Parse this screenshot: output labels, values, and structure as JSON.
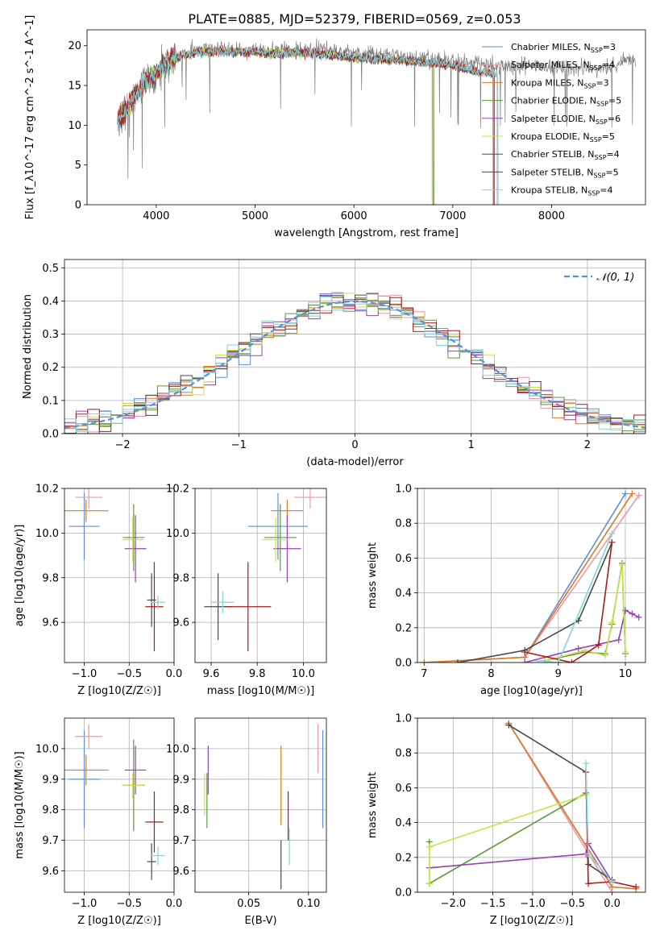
{
  "figure": {
    "title": "PLATE=0885, MJD=52379, FIBERID=0569, z=0.053"
  },
  "series_styles": [
    {
      "name": "Chabrier MILES",
      "nssp": "3",
      "color": "#5b8fd9"
    },
    {
      "name": "Salpeter MILES",
      "nssp": "4",
      "color": "#e89aa9"
    },
    {
      "name": "Kroupa MILES",
      "nssp": "3",
      "color": "#e07b22"
    },
    {
      "name": "Chabrier ELODIE",
      "nssp": "5",
      "color": "#5a9a3a"
    },
    {
      "name": "Salpeter ELODIE",
      "nssp": "6",
      "color": "#9b3fb5"
    },
    {
      "name": "Kroupa ELODIE",
      "nssp": "5",
      "color": "#c8e04a"
    },
    {
      "name": "Chabrier STELIB",
      "nssp": "4",
      "color": "#4a4a4a"
    },
    {
      "name": "Salpeter STELIB",
      "nssp": "5",
      "color": "#b01818"
    },
    {
      "name": "Kroupa STELIB",
      "nssp": "4",
      "color": "#7fd6dd"
    }
  ],
  "chart_data": [
    {
      "id": "spectrum",
      "type": "line",
      "xlabel": "wavelength [Angstrom, rest frame]",
      "ylabel": "Flux [f_λ10^-17 erg cm^-2 s^-1 A^-1]",
      "xlim": [
        3300,
        8950
      ],
      "ylim": [
        0,
        22
      ],
      "xticks": [
        4000,
        5000,
        6000,
        7000,
        8000
      ],
      "yticks": [
        0,
        5,
        10,
        15,
        20
      ],
      "legend_position": "right",
      "grid": false,
      "data_color": "#808080",
      "data_spectrum": {
        "x": [
          3610,
          3650,
          3700,
          3750,
          3800,
          3850,
          3900,
          3950,
          4000,
          4100,
          4200,
          4300,
          4400,
          4500,
          4600,
          4800,
          5000,
          5200,
          5400,
          5600,
          5800,
          6000,
          6200,
          6400,
          6600,
          6800,
          7000,
          7200,
          7400,
          7600,
          7800,
          8000,
          8200,
          8400,
          8600,
          8850
        ],
        "y": [
          10.0,
          11.0,
          12.5,
          13.0,
          14.5,
          15.0,
          16.0,
          15.5,
          16.5,
          18.0,
          18.5,
          19.0,
          19.5,
          19.8,
          19.6,
          19.5,
          19.4,
          19.3,
          19.5,
          19.6,
          19.3,
          19.0,
          18.8,
          18.7,
          18.5,
          18.2,
          18.0,
          17.8,
          17.5,
          17.4,
          17.5,
          17.3,
          17.2,
          17.0,
          17.4,
          18.5
        ]
      },
      "model_spectrum": {
        "x": [
          3610,
          3700,
          3800,
          3900,
          4000,
          4100,
          4200,
          4400,
          4600,
          4800,
          5000,
          5200,
          5400,
          5600,
          5800,
          6000,
          6200,
          6400,
          6600,
          6800,
          7000,
          7200,
          7400
        ],
        "y": [
          10.5,
          12.0,
          14.0,
          15.5,
          16.5,
          18.0,
          18.5,
          19.2,
          19.3,
          19.2,
          19.2,
          19.0,
          19.1,
          19.0,
          18.8,
          18.5,
          18.3,
          18.2,
          18.0,
          17.8,
          17.5,
          16.8,
          16.5
        ]
      }
    },
    {
      "id": "residuals",
      "type": "line",
      "xlabel": "(data-model)/error",
      "ylabel": "Normed distribution",
      "xlim": [
        -2.5,
        2.5
      ],
      "ylim": [
        0,
        0.525
      ],
      "xticks": [
        -2,
        -1,
        0,
        1,
        2
      ],
      "yticks": [
        0.0,
        0.1,
        0.2,
        0.3,
        0.4,
        0.5
      ],
      "legend": [
        "𝒩(0, 1)"
      ],
      "legend_position": "upper right",
      "grid": true
    },
    {
      "id": "age_vs_Z",
      "type": "scatter",
      "xlabel": "Z [log10(Z/Z☉)]",
      "ylabel": "age  [log10(age/yr)]",
      "xlim": [
        -1.22,
        0.0
      ],
      "ylim": [
        9.42,
        10.2
      ],
      "xticks": [
        -1.0,
        -0.5,
        0.0
      ],
      "yticks": [
        9.6,
        9.8,
        10.0,
        10.2
      ],
      "grid": true,
      "points": [
        {
          "x": -1.0,
          "y": 10.03,
          "xerr": 0.17,
          "yerr": 0.15
        },
        {
          "x": -0.95,
          "y": 10.16,
          "xerr": 0.15,
          "yerr": 0.05
        },
        {
          "x": -0.98,
          "y": 10.1,
          "xerr": 0.25,
          "yerr": 0.05
        },
        {
          "x": -0.45,
          "y": 9.98,
          "xerr": 0.12,
          "yerr": 0.15
        },
        {
          "x": -0.43,
          "y": 9.93,
          "xerr": 0.12,
          "yerr": 0.15
        },
        {
          "x": -0.46,
          "y": 9.97,
          "xerr": 0.12,
          "yerr": 0.1
        },
        {
          "x": -0.25,
          "y": 9.7,
          "xerr": 0.05,
          "yerr": 0.12
        },
        {
          "x": -0.22,
          "y": 9.67,
          "xerr": 0.1,
          "yerr": 0.2
        },
        {
          "x": -0.18,
          "y": 9.69,
          "xerr": 0.08,
          "yerr": 0.03
        }
      ]
    },
    {
      "id": "age_vs_mass",
      "type": "scatter",
      "xlabel": "mass [log10(M/M☉)]",
      "ylabel": "",
      "xlim": [
        9.53,
        10.1
      ],
      "ylim": [
        9.42,
        10.2
      ],
      "xticks": [
        9.6,
        9.8,
        10.0
      ],
      "yticks": [
        9.6,
        9.8,
        10.0,
        10.2
      ],
      "grid": true,
      "points": [
        {
          "x": 9.89,
          "y": 10.03,
          "xerr": 0.13,
          "yerr": 0.15
        },
        {
          "x": 10.03,
          "y": 10.16,
          "xerr": 0.07,
          "yerr": 0.05
        },
        {
          "x": 9.93,
          "y": 10.1,
          "xerr": 0.07,
          "yerr": 0.05
        },
        {
          "x": 9.9,
          "y": 9.98,
          "xerr": 0.07,
          "yerr": 0.15
        },
        {
          "x": 9.93,
          "y": 9.93,
          "xerr": 0.06,
          "yerr": 0.15
        },
        {
          "x": 9.88,
          "y": 9.97,
          "xerr": 0.06,
          "yerr": 0.1
        },
        {
          "x": 9.63,
          "y": 9.67,
          "xerr": 0.06,
          "yerr": 0.15
        },
        {
          "x": 9.76,
          "y": 9.67,
          "xerr": 0.1,
          "yerr": 0.2
        },
        {
          "x": 9.65,
          "y": 9.69,
          "xerr": 0.05,
          "yerr": 0.05
        }
      ]
    },
    {
      "id": "weight_vs_age",
      "type": "line",
      "xlabel": "age  [log10(age/yr)]",
      "ylabel": "mass weight",
      "xlim": [
        6.9,
        10.3
      ],
      "ylim": [
        0,
        1.0
      ],
      "xticks": [
        7,
        8,
        9,
        10
      ],
      "yticks": [
        0.0,
        0.2,
        0.4,
        0.6,
        0.8,
        1.0
      ],
      "grid": true,
      "series": [
        {
          "x": [
            7.0,
            8.5,
            10.0
          ],
          "y": [
            0.0,
            0.03,
            0.97
          ]
        },
        {
          "x": [
            7.0,
            8.5,
            10.2
          ],
          "y": [
            0.0,
            0.03,
            0.96
          ]
        },
        {
          "x": [
            7.0,
            8.5,
            10.1
          ],
          "y": [
            0.0,
            0.03,
            0.97
          ]
        },
        {
          "x": [
            8.8,
            9.4,
            9.7,
            9.8,
            9.95,
            10.0
          ],
          "y": [
            0.01,
            0.06,
            0.05,
            0.22,
            0.57,
            0.05
          ]
        },
        {
          "x": [
            8.5,
            9.3,
            9.9,
            10.0,
            10.1,
            10.2
          ],
          "y": [
            0.0,
            0.08,
            0.13,
            0.3,
            0.28,
            0.26
          ]
        },
        {
          "x": [
            8.8,
            9.4,
            9.7,
            9.8,
            9.95,
            10.0
          ],
          "y": [
            0.01,
            0.07,
            0.04,
            0.23,
            0.56,
            0.06
          ]
        },
        {
          "x": [
            7.5,
            8.5,
            9.3,
            9.8
          ],
          "y": [
            0.0,
            0.07,
            0.24,
            0.69
          ]
        },
        {
          "x": [
            8.5,
            9.2,
            9.6,
            9.8
          ],
          "y": [
            0.06,
            0.0,
            0.1,
            0.69
          ]
        },
        {
          "x": [
            8.7,
            9.0,
            9.8
          ],
          "y": [
            0.01,
            0.0,
            0.74
          ]
        }
      ]
    },
    {
      "id": "mass_vs_Z",
      "type": "scatter",
      "xlabel": "Z [log10(Z/Z☉)]",
      "ylabel": "mass [log10(M/M☉)]",
      "xlim": [
        -1.22,
        0.0
      ],
      "ylim": [
        9.53,
        10.1
      ],
      "xticks": [
        -1.0,
        -0.5,
        0.0
      ],
      "yticks": [
        9.6,
        9.7,
        9.8,
        9.9,
        10.0
      ],
      "grid": true,
      "points": [
        {
          "x": -1.0,
          "y": 9.9,
          "xerr": 0.18,
          "yerr": 0.16
        },
        {
          "x": -0.95,
          "y": 10.04,
          "xerr": 0.15,
          "yerr": 0.04
        },
        {
          "x": -0.98,
          "y": 9.93,
          "xerr": 0.25,
          "yerr": 0.05
        },
        {
          "x": -0.45,
          "y": 9.88,
          "xerr": 0.12,
          "yerr": 0.15
        },
        {
          "x": -0.43,
          "y": 9.93,
          "xerr": 0.12,
          "yerr": 0.08
        },
        {
          "x": -0.46,
          "y": 9.88,
          "xerr": 0.12,
          "yerr": 0.04
        },
        {
          "x": -0.25,
          "y": 9.63,
          "xerr": 0.05,
          "yerr": 0.06
        },
        {
          "x": -0.22,
          "y": 9.76,
          "xerr": 0.1,
          "yerr": 0.1
        },
        {
          "x": -0.18,
          "y": 9.65,
          "xerr": 0.08,
          "yerr": 0.03
        }
      ]
    },
    {
      "id": "mass_vs_ebv",
      "type": "scatter",
      "xlabel": "E(B-V)",
      "ylabel": "",
      "xlim": [
        0.005,
        0.115
      ],
      "ylim": [
        9.53,
        10.1
      ],
      "xticks": [
        0.05,
        0.1
      ],
      "yticks": [
        9.6,
        9.7,
        9.8,
        9.9,
        10.0
      ],
      "grid": true,
      "points": [
        {
          "x": 0.112,
          "y": 9.9,
          "yerr": 0.16
        },
        {
          "x": 0.108,
          "y": 10.0,
          "yerr": 0.08
        },
        {
          "x": 0.077,
          "y": 9.88,
          "yerr": 0.13
        },
        {
          "x": 0.015,
          "y": 9.83,
          "yerr": 0.09
        },
        {
          "x": 0.016,
          "y": 9.93,
          "yerr": 0.08
        },
        {
          "x": 0.013,
          "y": 9.85,
          "yerr": 0.07
        },
        {
          "x": 0.077,
          "y": 9.62,
          "yerr": 0.08
        },
        {
          "x": 0.083,
          "y": 9.78,
          "yerr": 0.08
        },
        {
          "x": 0.084,
          "y": 9.68,
          "yerr": 0.06
        }
      ]
    },
    {
      "id": "weight_vs_Z",
      "type": "line",
      "xlabel": "Z [log10(Z/Z☉)]",
      "ylabel": "mass weight",
      "xlim": [
        -2.45,
        0.42
      ],
      "ylim": [
        0,
        1.0
      ],
      "xticks": [
        -2.0,
        -1.5,
        -1.0,
        -0.5,
        0.0
      ],
      "yticks": [
        0.0,
        0.2,
        0.4,
        0.6,
        0.8,
        1.0
      ],
      "grid": true,
      "series": [
        {
          "x": [
            -1.3,
            0.0
          ],
          "y": [
            0.97,
            0.03
          ]
        },
        {
          "x": [
            -1.3,
            0.0
          ],
          "y": [
            0.97,
            0.0
          ]
        },
        {
          "x": [
            -1.3,
            0.0,
            0.3
          ],
          "y": [
            0.97,
            0.03,
            0.02
          ]
        },
        {
          "x": [
            -2.3,
            -2.3,
            -0.33
          ],
          "y": [
            0.29,
            0.05,
            0.57
          ]
        },
        {
          "x": [
            -2.3,
            -0.33,
            -0.3,
            0.0
          ],
          "y": [
            0.14,
            0.22,
            0.28,
            0.06
          ]
        },
        {
          "x": [
            -2.3,
            -2.3,
            -0.33
          ],
          "y": [
            0.05,
            0.26,
            0.56
          ]
        },
        {
          "x": [
            -1.3,
            -0.33,
            -0.3,
            0.0
          ],
          "y": [
            0.96,
            0.69,
            0.16,
            0.07
          ]
        },
        {
          "x": [
            -0.33,
            -0.3,
            0.0,
            0.3
          ],
          "y": [
            0.69,
            0.05,
            0.06,
            0.03
          ]
        },
        {
          "x": [
            -0.33,
            -0.3,
            0.0
          ],
          "y": [
            0.74,
            0.22,
            0.06
          ]
        }
      ]
    }
  ]
}
